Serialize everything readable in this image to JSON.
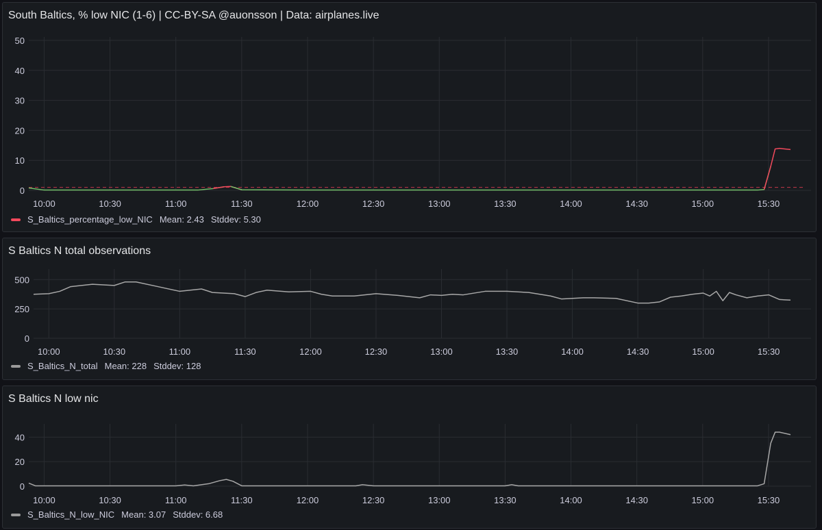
{
  "panels": [
    {
      "title": "South Baltics, % low NIC (1-6) | CC-BY-SA @auonsson | Data: airplanes.live",
      "legend": {
        "name": "S_Baltics_percentage_low_NIC",
        "mean": "Mean: 2.43",
        "stddev": "Stddev: 5.30",
        "color": "#f2495c"
      },
      "chart_data": {
        "type": "line",
        "x_ticks": [
          "10:00",
          "10:30",
          "11:00",
          "11:30",
          "12:00",
          "12:30",
          "13:00",
          "13:30",
          "14:00",
          "14:30",
          "15:00",
          "15:30"
        ],
        "y_ticks": [
          "0",
          "10",
          "20",
          "30",
          "40",
          "50"
        ],
        "ylim": [
          0,
          50
        ],
        "xlim": [
          "09:53",
          "15:40"
        ],
        "threshold": 1,
        "series": [
          {
            "name": "S_Baltics_percentage_low_NIC",
            "x": [
              "09:53",
              "10:00",
              "10:30",
              "11:00",
              "11:10",
              "11:17",
              "11:22",
              "11:25",
              "11:30",
              "12:00",
              "12:30",
              "13:00",
              "13:30",
              "14:00",
              "14:30",
              "15:00",
              "15:25",
              "15:28",
              "15:31",
              "15:33",
              "15:35",
              "15:40"
            ],
            "values": [
              0.8,
              0.1,
              0.1,
              0.1,
              0.1,
              0.6,
              1.2,
              1.3,
              0.2,
              0.1,
              0.1,
              0.1,
              0.1,
              0.1,
              0.1,
              0.1,
              0.1,
              0.3,
              8.0,
              13.8,
              14.0,
              13.6
            ]
          }
        ]
      }
    },
    {
      "title": "S Baltics N total observations",
      "legend": {
        "name": "S_Baltics_N_total",
        "mean": "Mean: 228",
        "stddev": "Stddev: 128",
        "color": "#9a9a9a"
      },
      "chart_data": {
        "type": "line",
        "x_ticks": [
          "10:00",
          "10:30",
          "11:00",
          "11:30",
          "12:00",
          "12:30",
          "13:00",
          "13:30",
          "14:00",
          "14:30",
          "15:00",
          "15:30"
        ],
        "y_ticks": [
          "0",
          "250",
          "500"
        ],
        "ylim": [
          0,
          560
        ],
        "xlim": [
          "09:53",
          "15:40"
        ],
        "series": [
          {
            "name": "S_Baltics_N_total",
            "x": [
              "09:53",
              "10:00",
              "10:05",
              "10:10",
              "10:20",
              "10:30",
              "10:35",
              "10:40",
              "10:50",
              "11:00",
              "11:10",
              "11:15",
              "11:25",
              "11:30",
              "11:35",
              "11:40",
              "11:50",
              "12:00",
              "12:05",
              "12:10",
              "12:20",
              "12:30",
              "12:40",
              "12:50",
              "12:55",
              "13:00",
              "13:05",
              "13:10",
              "13:20",
              "13:30",
              "13:40",
              "13:50",
              "13:55",
              "14:00",
              "14:05",
              "14:10",
              "14:20",
              "14:30",
              "14:35",
              "14:40",
              "14:45",
              "14:50",
              "14:55",
              "15:00",
              "15:03",
              "15:06",
              "15:09",
              "15:12",
              "15:15",
              "15:20",
              "15:25",
              "15:30",
              "15:35",
              "15:40"
            ],
            "values": [
              375,
              380,
              400,
              440,
              460,
              450,
              480,
              480,
              440,
              400,
              420,
              390,
              380,
              355,
              390,
              410,
              395,
              400,
              375,
              360,
              360,
              380,
              365,
              345,
              370,
              365,
              375,
              370,
              400,
              400,
              390,
              360,
              335,
              340,
              345,
              345,
              340,
              300,
              300,
              310,
              350,
              360,
              375,
              385,
              360,
              400,
              320,
              390,
              370,
              345,
              360,
              370,
              330,
              325
            ]
          }
        ]
      }
    },
    {
      "title": "S Baltics N low nic",
      "legend": {
        "name": "S_Baltics_N_low_NIC",
        "mean": "Mean: 3.07",
        "stddev": "Stddev: 6.68",
        "color": "#9a9a9a"
      },
      "chart_data": {
        "type": "line",
        "x_ticks": [
          "10:00",
          "10:30",
          "11:00",
          "11:30",
          "12:00",
          "12:30",
          "13:00",
          "13:30",
          "14:00",
          "14:30",
          "15:00",
          "15:30"
        ],
        "y_ticks": [
          "0",
          "20",
          "40"
        ],
        "ylim": [
          0,
          48
        ],
        "xlim": [
          "09:53",
          "15:40"
        ],
        "series": [
          {
            "name": "S_Baltics_N_low_NIC",
            "x": [
              "09:53",
              "09:56",
              "10:30",
              "11:00",
              "11:04",
              "11:08",
              "11:15",
              "11:20",
              "11:23",
              "11:26",
              "11:30",
              "12:00",
              "12:22",
              "12:25",
              "12:30",
              "13:00",
              "13:30",
              "13:33",
              "13:36",
              "14:00",
              "14:30",
              "15:00",
              "15:25",
              "15:28",
              "15:31",
              "15:33",
              "15:35",
              "15:40"
            ],
            "values": [
              2.5,
              0.3,
              0.3,
              0.3,
              1.0,
              0.3,
              2.0,
              4.5,
              5.5,
              4.0,
              0.3,
              0.3,
              0.3,
              1.2,
              0.3,
              0.3,
              0.3,
              1.2,
              0.3,
              0.3,
              0.3,
              0.3,
              0.3,
              2.0,
              35,
              44,
              44,
              42
            ]
          }
        ]
      }
    }
  ]
}
